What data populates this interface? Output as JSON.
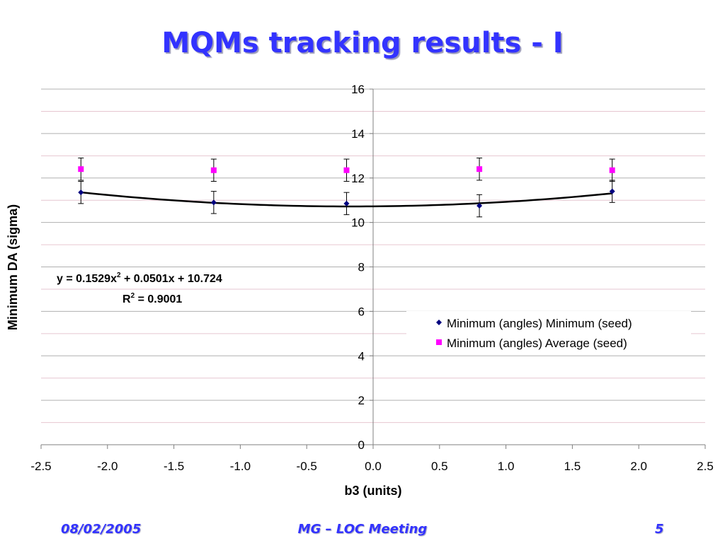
{
  "slide": {
    "title": "MQMs tracking results - I",
    "footer_left": "08/02/2005",
    "footer_center": "MG – LOC Meeting",
    "footer_right": "5"
  },
  "chart_data": {
    "type": "scatter",
    "xlabel": "b3 (units)",
    "ylabel": "Minimum DA (sigma)",
    "xlim": [
      -2.5,
      2.5
    ],
    "ylim": [
      0,
      16
    ],
    "x_ticks": [
      "-2.5",
      "-2.0",
      "-1.5",
      "-1.0",
      "-0.5",
      "0.0",
      "0.5",
      "1.0",
      "1.5",
      "2.0",
      "2.5"
    ],
    "y_ticks": [
      "0",
      "2",
      "4",
      "6",
      "8",
      "10",
      "12",
      "14",
      "16"
    ],
    "grid": true,
    "legend_position": "right",
    "series": [
      {
        "name": "Minimum (angles) Minimum (seed)",
        "marker": "diamond",
        "color": "#000080",
        "x": [
          -2.2,
          -1.2,
          -0.2,
          0.8,
          1.8
        ],
        "y": [
          11.35,
          10.9,
          10.85,
          10.75,
          11.4
        ],
        "error": [
          0.5,
          0.5,
          0.5,
          0.5,
          0.5
        ]
      },
      {
        "name": "Minimum (angles) Average (seed)",
        "marker": "square",
        "color": "#ff00ff",
        "x": [
          -2.2,
          -1.2,
          -0.2,
          0.8,
          1.8
        ],
        "y": [
          12.4,
          12.35,
          12.35,
          12.4,
          12.35
        ],
        "error": [
          0.5,
          0.5,
          0.5,
          0.5,
          0.5
        ]
      }
    ],
    "trendline": {
      "type": "polynomial",
      "coefficients": [
        0.1529,
        0.0501,
        10.724
      ],
      "x_range": [
        -2.2,
        1.8
      ],
      "equation_prefix": "y = 0.1529x",
      "equation_sup": "2",
      "equation_suffix": " + 0.0501x + 10.724",
      "r2_prefix": "R",
      "r2_sup": "2",
      "r2_suffix": " = 0.9001"
    }
  }
}
